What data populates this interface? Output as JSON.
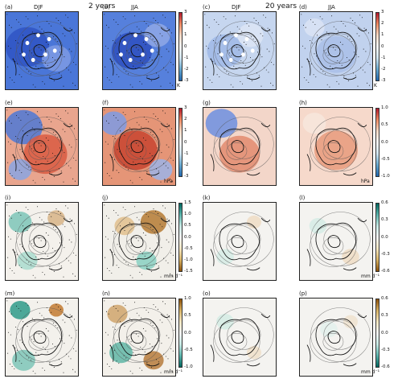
{
  "headers": {
    "left": "2 years",
    "right": "20 years"
  },
  "columns": [
    "DJF",
    "JJA",
    "DJF",
    "JJA"
  ],
  "panel_labels": [
    "(a)",
    "(b)",
    "(c)",
    "(d)",
    "(e)",
    "(f)",
    "(g)",
    "(h)",
    "(i)",
    "(j)",
    "(k)",
    "(l)",
    "(m)",
    "(n)",
    "(o)",
    "(p)"
  ],
  "colorbars": [
    {
      "id": "r1a",
      "ticks": [
        "3",
        "2",
        "1",
        "0",
        "-1",
        "-2",
        "-3"
      ],
      "unit": "K"
    },
    {
      "id": "r1b",
      "ticks": [
        "3",
        "2",
        "1",
        "0",
        "-1",
        "-2",
        "-3"
      ],
      "unit": "K"
    },
    {
      "id": "r2a",
      "ticks": [
        "3",
        "2",
        "1",
        "0",
        "-1",
        "-2",
        "-3"
      ],
      "unit": "hPa"
    },
    {
      "id": "r2b",
      "ticks": [
        "1.0",
        "0.5",
        "0.0",
        "-0.5",
        "-1.0"
      ],
      "unit": "hPa"
    },
    {
      "id": "r3a",
      "ticks": [
        "1.5",
        "1.0",
        "0.5",
        "0.0",
        "-0.5",
        "-1.0",
        "-1.5"
      ],
      "unit": "mm d⁻¹"
    },
    {
      "id": "r3b",
      "ticks": [
        "0.6",
        "0.3",
        "0.0",
        "-0.3",
        "-0.6"
      ],
      "unit": "mm d⁻¹"
    },
    {
      "id": "r4a",
      "ticks": [
        "1.0",
        "0.5",
        "0.0",
        "-0.5",
        "-1.0"
      ],
      "unit": "mm d⁻¹"
    },
    {
      "id": "r4b",
      "ticks": [
        "0.6",
        "0.3",
        "0.0",
        "-0.3",
        "-0.6"
      ],
      "unit": "mm d⁻¹"
    }
  ],
  "colors": {
    "cold": "#3f6fd6",
    "warm": "#d8553e",
    "light_blue": "#c9d8ef",
    "light_red": "#f2c7b5",
    "wet": "#2e9b8a",
    "dry": "#b8823f",
    "neutral": "#f3f1ee"
  }
}
